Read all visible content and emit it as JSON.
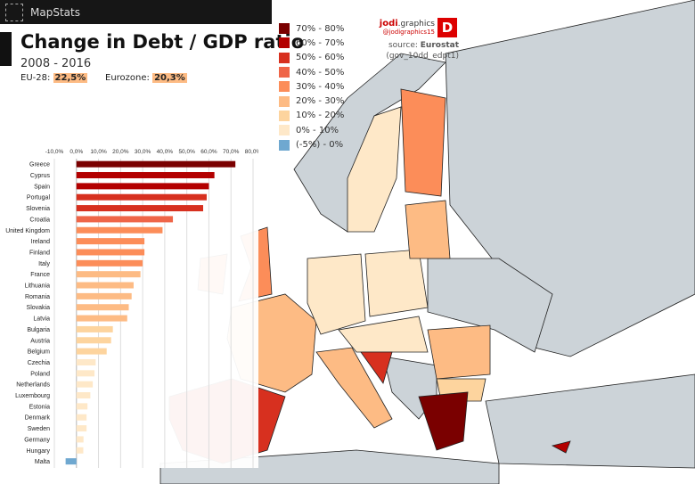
{
  "app": {
    "name": "MapStats"
  },
  "header": {
    "title": "Change in Debt / GDP ratio",
    "years": "2008 - 2016",
    "eu_label": "EU-28:",
    "eu_value": "22,5%",
    "ez_label": "Eurozone:",
    "ez_value": "20,3%"
  },
  "brand": {
    "name_bold": "jodi",
    "name_rest": ".graphics",
    "handle": "@jodigraphics15",
    "logo_letter": "D",
    "source_label": "source:",
    "source": "Eurostat",
    "dataset": "(gov_10dd_edpt1)"
  },
  "legend": [
    {
      "label": "70% - 80%",
      "color": "#7a0000"
    },
    {
      "label": "60% - 70%",
      "color": "#b30000"
    },
    {
      "label": "50% - 60%",
      "color": "#d7301f"
    },
    {
      "label": "40% - 50%",
      "color": "#ef6548"
    },
    {
      "label": "30% - 40%",
      "color": "#fc8d59"
    },
    {
      "label": "20% - 30%",
      "color": "#fdbb84"
    },
    {
      "label": "10% - 20%",
      "color": "#fdd49e"
    },
    {
      "label": "0% - 10%",
      "color": "#fee8c8"
    },
    {
      "label": "(-5%) - 0%",
      "color": "#6fa8d0"
    }
  ],
  "chart_data": {
    "type": "bar",
    "orientation": "horizontal",
    "xlabel": "",
    "ylabel": "",
    "xlim": [
      -10,
      80
    ],
    "grid": true,
    "tick_labels": [
      "-10,0%",
      "0,0%",
      "10,0%",
      "20,0%",
      "30,0%",
      "40,0%",
      "50,0%",
      "60,0%",
      "70,0%",
      "80,0%"
    ],
    "categories": [
      "Greece",
      "Cyprus",
      "Spain",
      "Portugal",
      "Slovenia",
      "Croatia",
      "United Kingdom",
      "Ireland",
      "Finland",
      "Italy",
      "France",
      "Lithuania",
      "Romania",
      "Slovakia",
      "Latvia",
      "Bulgaria",
      "Austria",
      "Belgium",
      "Czechia",
      "Poland",
      "Netherlands",
      "Luxembourg",
      "Estonia",
      "Denmark",
      "Sweden",
      "Germany",
      "Hungary",
      "Malta"
    ],
    "values": [
      72,
      62.5,
      60,
      59,
      57.4,
      43.7,
      39,
      30.8,
      30.8,
      30,
      29,
      25.9,
      25,
      23.7,
      23,
      16.5,
      15.7,
      13.7,
      8.7,
      8.2,
      7.4,
      6.3,
      5,
      4.6,
      4.6,
      3.2,
      3.1,
      -4.9
    ]
  }
}
